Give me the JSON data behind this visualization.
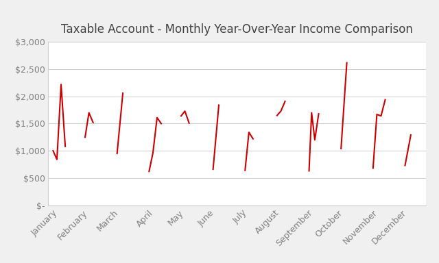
{
  "title": "Taxable Account - Monthly Year-Over-Year Income Comparison",
  "background_color": "#f0f0f0",
  "plot_background": "#ffffff",
  "line_color": "#cc0000",
  "line_width": 1.5,
  "ylim": [
    0,
    3000
  ],
  "yticks": [
    0,
    500,
    1000,
    1500,
    2000,
    2500,
    3000
  ],
  "ytick_labels": [
    "$-",
    "$500",
    "$1,000",
    "$1,500",
    "$2,000",
    "$2,500",
    "$3,000"
  ],
  "months": [
    "January",
    "February",
    "March",
    "April",
    "May",
    "June",
    "July",
    "August",
    "September",
    "October",
    "November",
    "December"
  ],
  "segments": [
    [
      [
        0.0,
        1000
      ],
      [
        0.12,
        840
      ],
      [
        0.25,
        2220
      ],
      [
        0.38,
        1080
      ]
    ],
    [
      [
        1.0,
        1250
      ],
      [
        1.12,
        1700
      ],
      [
        1.25,
        1520
      ]
    ],
    [
      [
        2.0,
        950
      ],
      [
        2.18,
        2060
      ]
    ],
    [
      [
        3.0,
        620
      ],
      [
        3.12,
        960
      ],
      [
        3.25,
        1610
      ],
      [
        3.38,
        1500
      ]
    ],
    [
      [
        4.0,
        1640
      ],
      [
        4.12,
        1730
      ],
      [
        4.25,
        1510
      ]
    ],
    [
      [
        5.0,
        660
      ],
      [
        5.18,
        1840
      ]
    ],
    [
      [
        6.0,
        640
      ],
      [
        6.12,
        1340
      ],
      [
        6.25,
        1220
      ]
    ],
    [
      [
        7.0,
        1650
      ],
      [
        7.12,
        1730
      ],
      [
        7.25,
        1910
      ]
    ],
    [
      [
        8.0,
        630
      ],
      [
        8.08,
        1700
      ],
      [
        8.18,
        1200
      ],
      [
        8.3,
        1680
      ]
    ],
    [
      [
        9.0,
        1040
      ],
      [
        9.18,
        2620
      ]
    ],
    [
      [
        10.0,
        680
      ],
      [
        10.12,
        1670
      ],
      [
        10.25,
        1640
      ],
      [
        10.38,
        1940
      ]
    ],
    [
      [
        11.0,
        730
      ],
      [
        11.18,
        1290
      ]
    ]
  ],
  "grid_color": "#d0d0d0",
  "tick_label_color": "#808080",
  "title_color": "#404040",
  "title_fontsize": 12,
  "tick_fontsize": 9,
  "month_tick_positions": [
    0.19,
    1.12,
    2.09,
    3.19,
    4.12,
    5.09,
    6.12,
    7.12,
    8.15,
    9.09,
    10.19,
    11.09
  ],
  "xlim": [
    -0.15,
    11.65
  ]
}
